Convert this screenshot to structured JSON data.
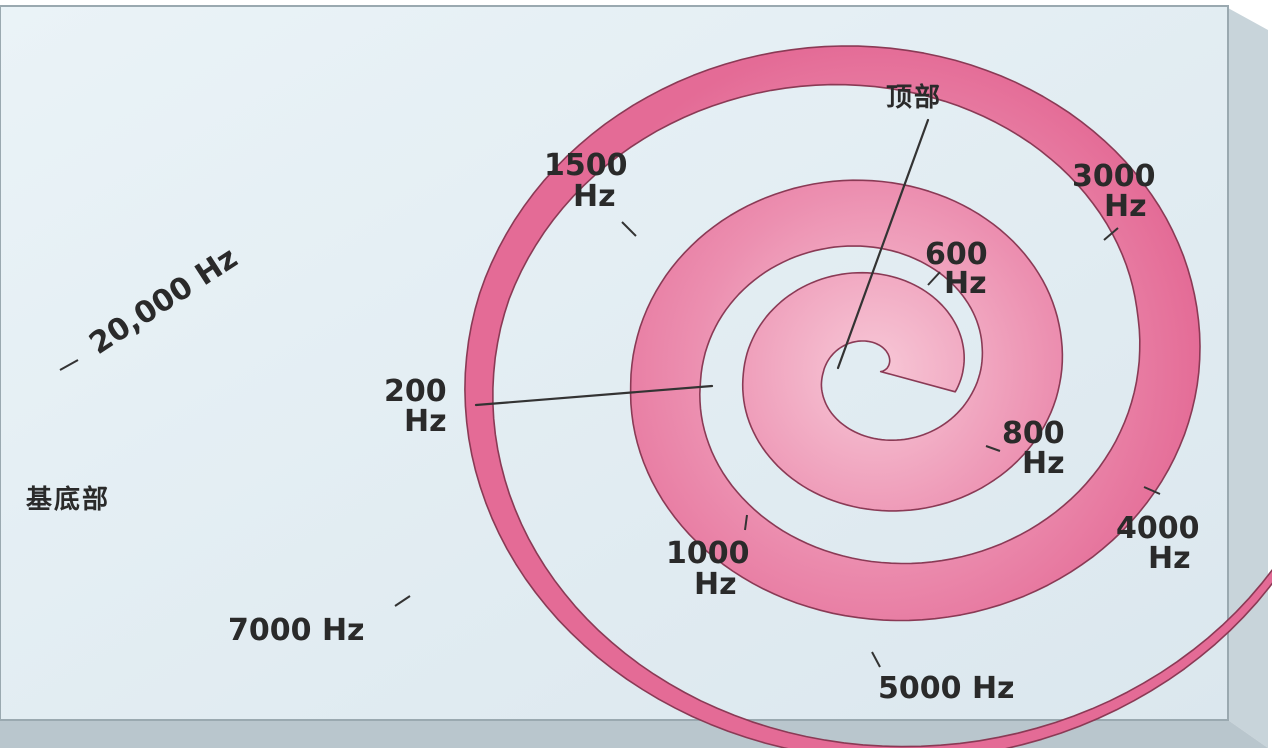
{
  "diagram": {
    "apex_label": "顶部",
    "base_label": "基底部",
    "frequency_labels": [
      {
        "id": "f20000",
        "text": "20,000 Hz"
      },
      {
        "id": "f1500_value",
        "text": "1500"
      },
      {
        "id": "f1500_unit",
        "text": "Hz"
      },
      {
        "id": "f3000_value",
        "text": "3000"
      },
      {
        "id": "f3000_unit",
        "text": "Hz"
      },
      {
        "id": "f600_value",
        "text": "600"
      },
      {
        "id": "f600_unit",
        "text": "Hz"
      },
      {
        "id": "f200_value",
        "text": "200"
      },
      {
        "id": "f200_unit",
        "text": "Hz"
      },
      {
        "id": "f800_value",
        "text": "800"
      },
      {
        "id": "f800_unit",
        "text": "Hz"
      },
      {
        "id": "f4000_value",
        "text": "4000"
      },
      {
        "id": "f4000_unit",
        "text": "Hz"
      },
      {
        "id": "f1000_value",
        "text": "1000"
      },
      {
        "id": "f1000_unit",
        "text": "Hz"
      },
      {
        "id": "f7000",
        "text": "7000 Hz"
      },
      {
        "id": "f5000",
        "text": "5000 Hz"
      }
    ],
    "colors": {
      "panel": "#e4eef3",
      "panel_edge": "#c9d6dc",
      "membrane_light": "#f6c3d3",
      "membrane_dark": "#e26190",
      "membrane_outline": "#8a3a55"
    }
  }
}
